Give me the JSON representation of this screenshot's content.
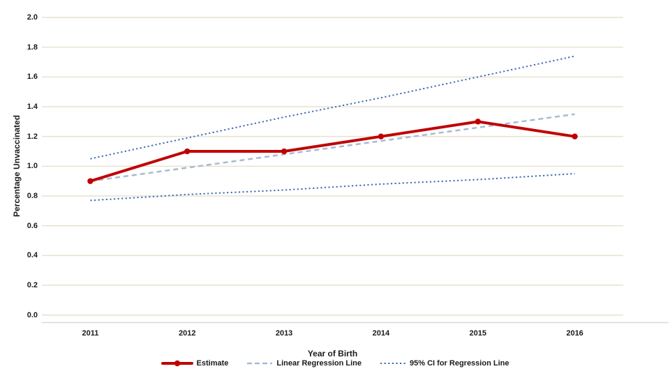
{
  "chart_data": {
    "type": "line",
    "title": "",
    "xlabel": "Year of Birth",
    "ylabel": "Percentage Unvaccinated",
    "categories": [
      "2011",
      "2012",
      "2013",
      "2014",
      "2015",
      "2016"
    ],
    "series": [
      {
        "name": "Estimate",
        "values": [
          0.9,
          1.1,
          1.1,
          1.2,
          1.3,
          1.2
        ],
        "color": "#c00000",
        "style": "solid",
        "marker": "circle"
      },
      {
        "name": "Linear Regression Line",
        "values": [
          0.9,
          0.99,
          1.08,
          1.17,
          1.26,
          1.35
        ],
        "color": "#a8bad2",
        "style": "dashed",
        "marker": "none"
      },
      {
        "name": "95% CI for Regression Line (upper)",
        "values": [
          1.05,
          1.19,
          1.33,
          1.46,
          1.6,
          1.74
        ],
        "color": "#3e6cb5",
        "style": "dotted",
        "marker": "none"
      },
      {
        "name": "95% CI for Regression Line (lower)",
        "values": [
          0.77,
          0.81,
          0.84,
          0.88,
          0.91,
          0.95
        ],
        "color": "#3e6cb5",
        "style": "dotted",
        "marker": "none"
      }
    ],
    "ylim": [
      0.0,
      2.0
    ],
    "ytick_step": 0.2,
    "ytick_labels": [
      "0.0",
      "0.2",
      "0.4",
      "0.6",
      "0.8",
      "1.0",
      "1.2",
      "1.4",
      "1.6",
      "1.8",
      "2.0"
    ],
    "xtick_labels": [
      "2011",
      "2012",
      "2013",
      "2014",
      "2015",
      "2016"
    ],
    "grid": "horizontal",
    "gridline_color": "#e8e1cf",
    "axis_line_color": "#d9d9d9",
    "text_color": "#1a1a1a",
    "background_color": "#ffffff",
    "legend_position": "bottom",
    "legend": [
      {
        "label": "Estimate",
        "swatch": "solid-line-with-circle-marker",
        "color": "#c00000"
      },
      {
        "label": "Linear Regression Line",
        "swatch": "dashed-line",
        "color": "#a8bad2"
      },
      {
        "label": "95% CI for Regression Line",
        "swatch": "dotted-line",
        "color": "#3e6cb5"
      }
    ]
  }
}
